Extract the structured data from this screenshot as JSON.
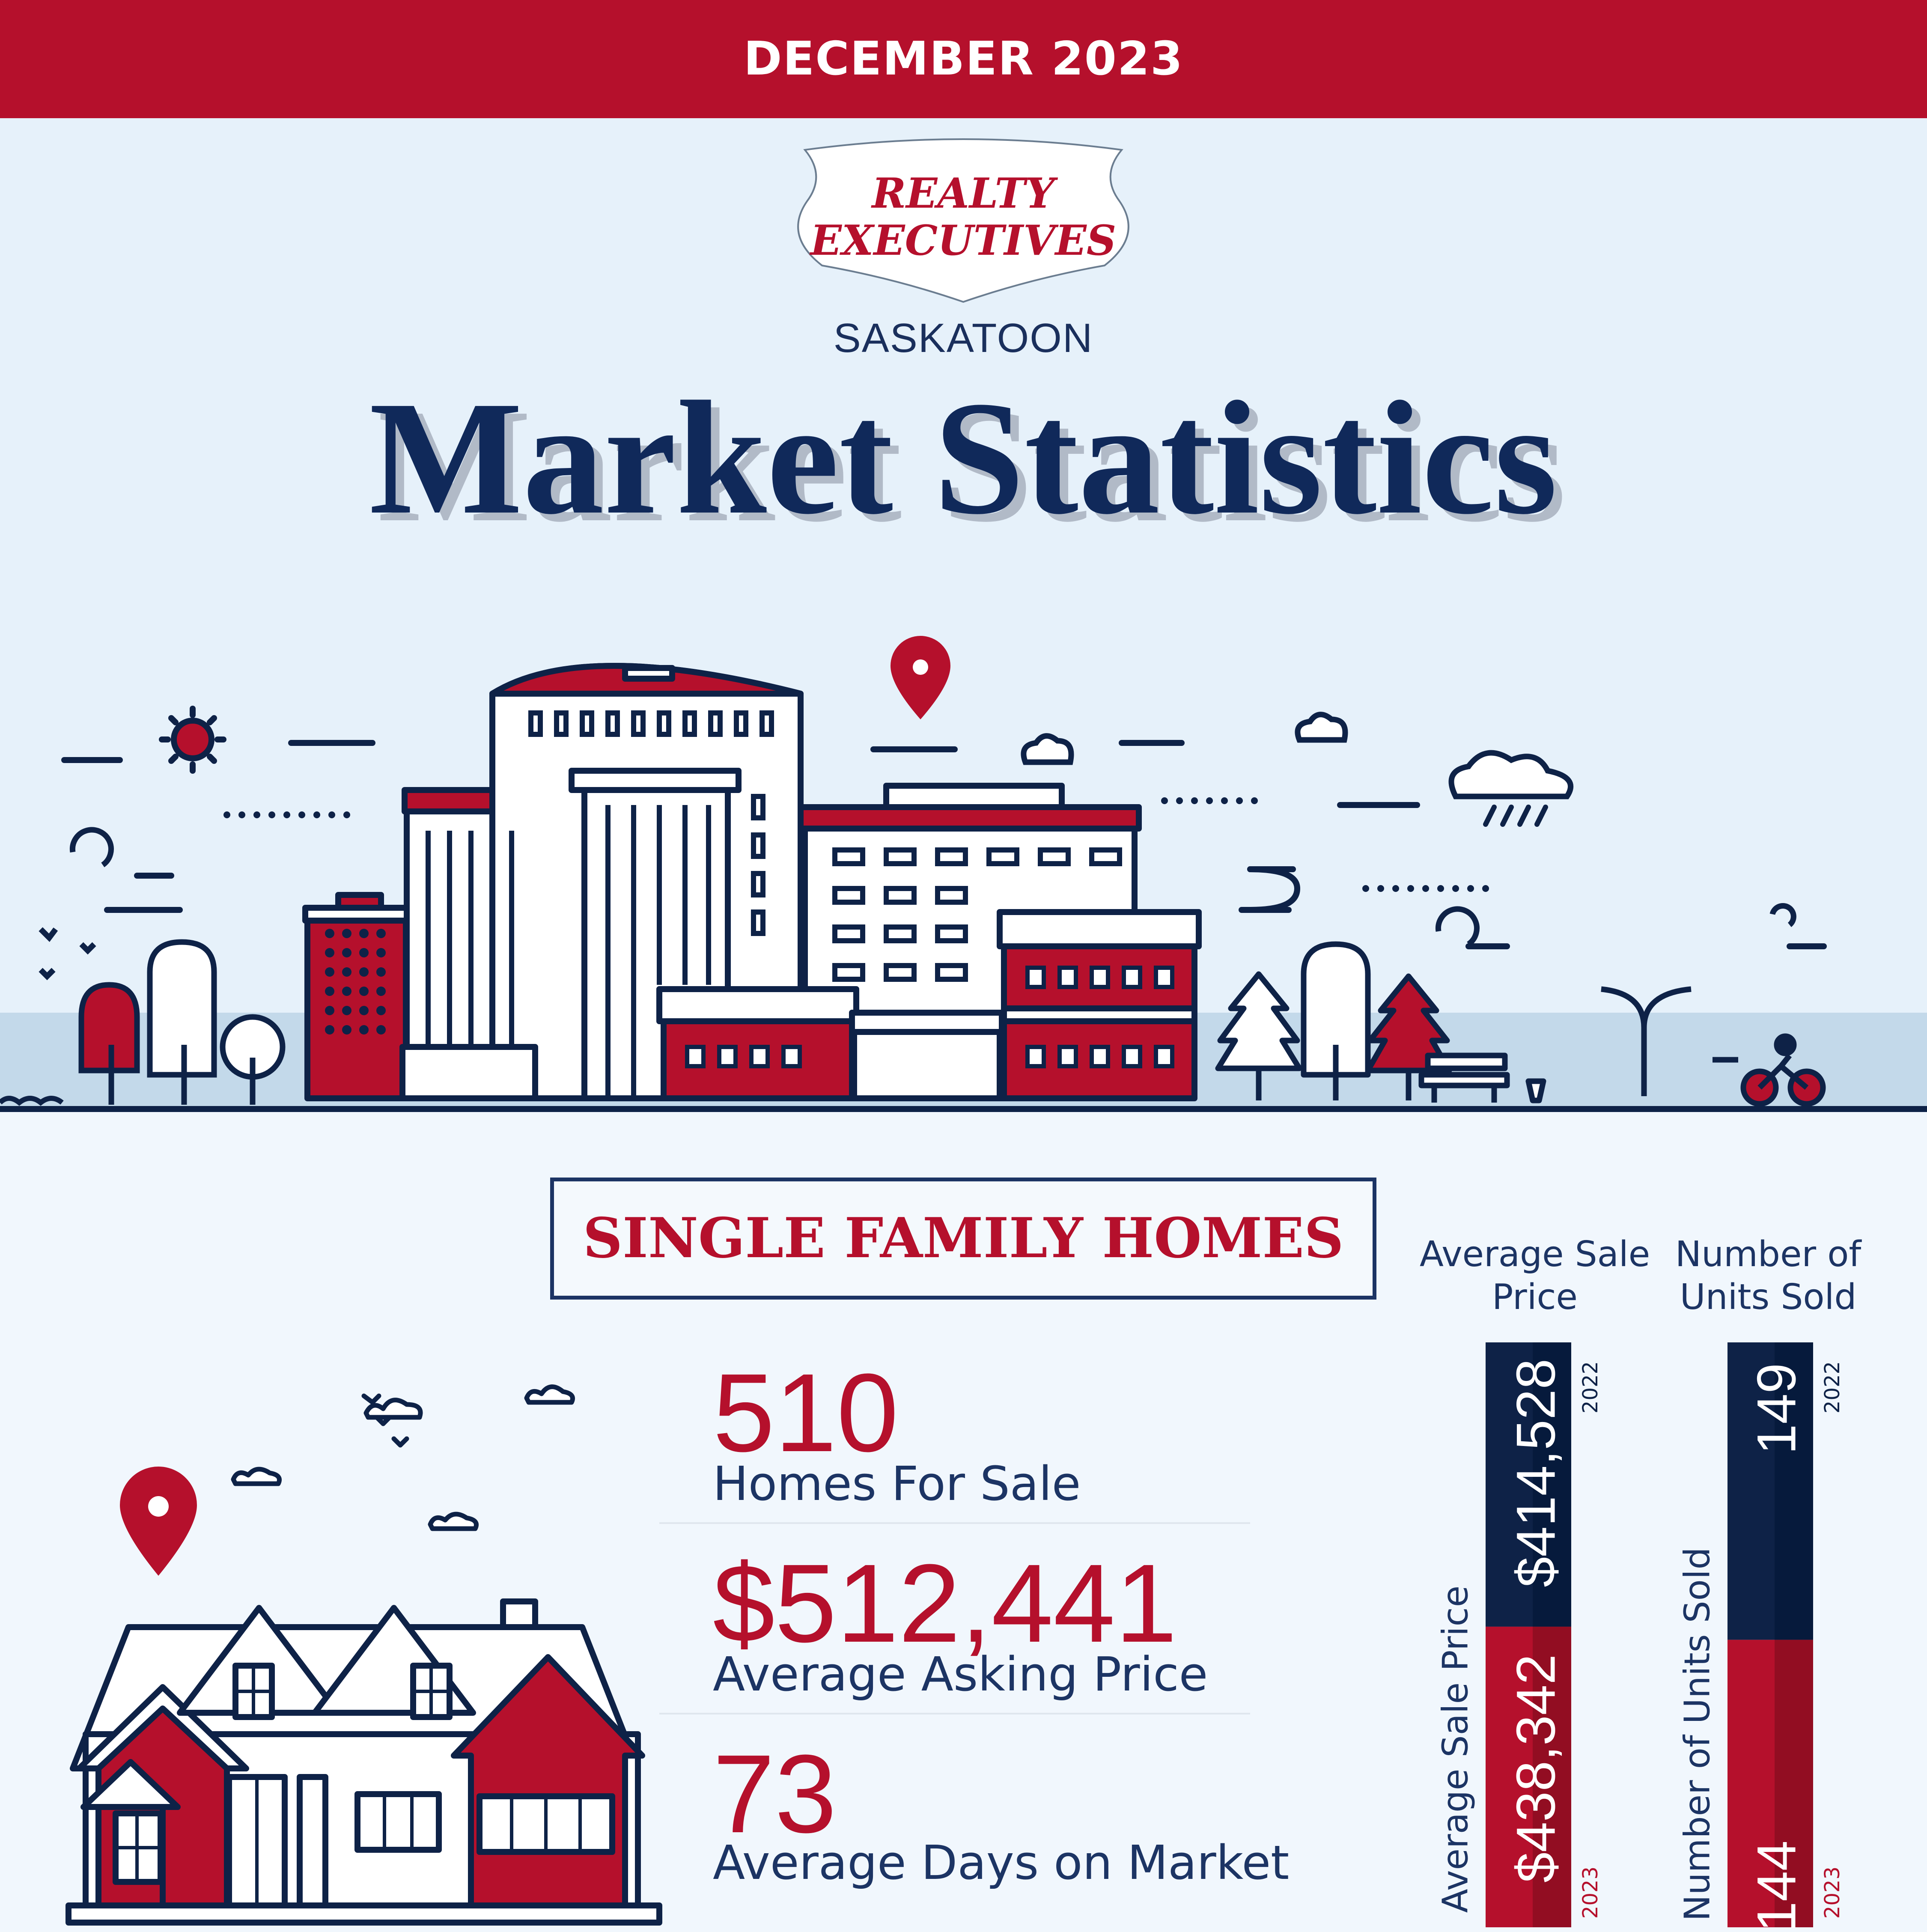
{
  "banner": {
    "month_label": "DECEMBER 2023"
  },
  "logo": {
    "line1": "REALTY",
    "line2": "EXECUTIVES",
    "city": "SASKATOON"
  },
  "title": "Market Statistics",
  "section": {
    "title": "SINGLE FAMILY HOMES"
  },
  "stats": [
    {
      "value": "510",
      "label": "Homes For Sale"
    },
    {
      "value": "$512,441",
      "label": "Average Asking Price"
    },
    {
      "value": "73",
      "label": "Average Days on Market"
    }
  ],
  "colors": {
    "red": "#b5102c",
    "navy": "#1c3464",
    "navy_dark": "#0e2247",
    "sky": "#e6f1fa",
    "ground": "#c3d9ea"
  },
  "chart_data": [
    {
      "type": "bar",
      "title": "Average Sale Price",
      "ylabel": "Average Sale Price",
      "series": [
        {
          "name": "2022",
          "values": [
            414528
          ],
          "label": "$414,528"
        },
        {
          "name": "2023",
          "values": [
            438342
          ],
          "label": "$438,342"
        }
      ]
    },
    {
      "type": "bar",
      "title": "Number of Units Sold",
      "ylabel": "Number of Units Sold",
      "series": [
        {
          "name": "2022",
          "values": [
            149
          ],
          "label": "149"
        },
        {
          "name": "2023",
          "values": [
            144
          ],
          "label": "144"
        }
      ]
    }
  ]
}
